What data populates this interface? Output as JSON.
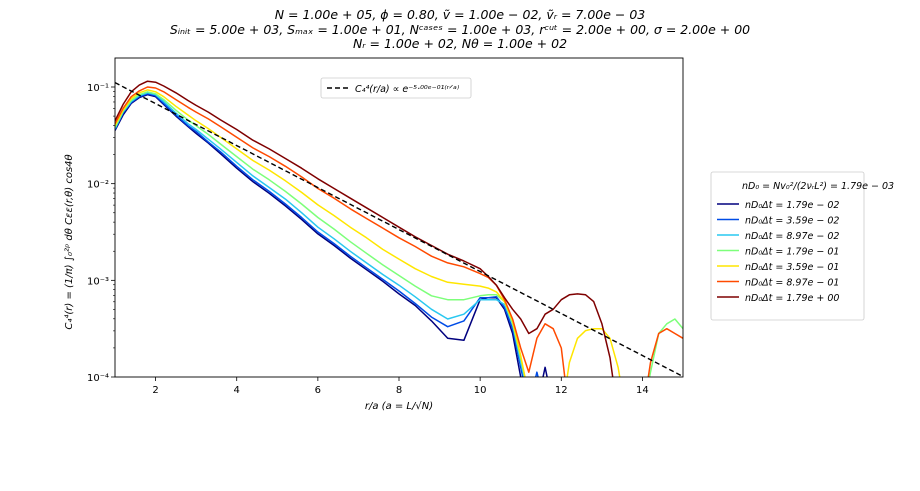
{
  "chart_data": {
    "type": "line",
    "title_lines": [
      "N = 1.00e + 05, ϕ = 0.80, ṽ = 1.00e − 02, ṽᵣ = 7.00e − 03",
      "Sᵢₙᵢₜ = 5.00e + 03, Sₘₐₓ = 1.00e + 01, Nᶜᵃˢᵉˢ = 1.00e + 03, rᶜᵘᵗ = 2.00e + 00, σ = 2.00e + 00",
      "Nᵣ = 1.00e + 02, Nθ = 1.00e + 02"
    ],
    "xlabel": "r/a (a = L/√N)",
    "ylabel": "C₄⁴(r) = (1/π) ∫₀²ᵖ dθ Cεε(r,θ) cos4θ",
    "xlim": [
      1,
      15
    ],
    "ylim_log10": [
      -4,
      -0.7
    ],
    "yscale": "log",
    "x_ticks": [
      2,
      4,
      6,
      8,
      10,
      12,
      14
    ],
    "x_tick_labels": [
      "2",
      "4",
      "6",
      "8",
      "10",
      "12",
      "14"
    ],
    "y_ticks_log10": [
      -4,
      -3,
      -2,
      -1
    ],
    "y_tick_labels": [
      "10⁻⁴",
      "10⁻³",
      "10⁻²",
      "10⁻¹"
    ],
    "fit_line": {
      "label": "C₄⁴(r/a) ∝ e⁻⁵·⁰⁰ᵉ⁻⁰¹⁽ʳᐟᵃ⁾",
      "amplitude": 0.183,
      "rate": 0.5,
      "color": "#000000"
    },
    "legend_title": "nD₀ = Nv₀²/(2νᵣL²) = 1.79e − 03",
    "x": [
      1,
      1.2,
      1.4,
      1.6,
      1.8,
      2,
      2.2,
      2.5,
      2.8,
      3,
      3.3,
      3.6,
      4,
      4.4,
      4.8,
      5.2,
      5.6,
      6,
      6.4,
      6.8,
      7.2,
      7.6,
      8,
      8.4,
      8.8,
      9.2,
      9.6,
      10,
      10.2,
      10.4,
      10.6,
      10.8,
      11,
      11.2,
      11.4,
      11.6,
      11.8,
      12,
      12.2,
      12.4,
      12.6,
      12.8,
      13,
      13.2,
      13.4,
      13.6,
      13.8,
      14,
      14.2,
      14.4,
      14.6,
      14.8,
      15
    ],
    "series": [
      {
        "name": "nD₀Δt = 1.79e − 02",
        "color": "#00007f",
        "log10": [
          -1.45,
          -1.29,
          -1.17,
          -1.11,
          -1.08,
          -1.1,
          -1.18,
          -1.3,
          -1.41,
          -1.48,
          -1.58,
          -1.69,
          -1.84,
          -1.98,
          -2.1,
          -2.23,
          -2.37,
          -2.52,
          -2.64,
          -2.77,
          -2.89,
          -3.01,
          -3.14,
          -3.26,
          -3.42,
          -3.6,
          -3.62,
          -3.2,
          -3.18,
          -3.18,
          -3.3,
          -3.55,
          -4,
          -4.3,
          -4.3,
          -3.9,
          -4.3,
          -4.4,
          -4.4,
          -4.4,
          -4.4,
          -4.4,
          -4.4,
          -4.4,
          -4.4,
          -4.4,
          -4.4,
          -4.4,
          -4.4,
          -4.4,
          -4.4,
          -4.4,
          -4.4
        ]
      },
      {
        "name": "nD₀Δt = 3.59e − 02",
        "color": "#004ce6",
        "log10": [
          -1.44,
          -1.27,
          -1.16,
          -1.1,
          -1.07,
          -1.09,
          -1.17,
          -1.29,
          -1.4,
          -1.46,
          -1.57,
          -1.67,
          -1.82,
          -1.96,
          -2.08,
          -2.21,
          -2.35,
          -2.5,
          -2.62,
          -2.75,
          -2.87,
          -2.99,
          -3.11,
          -3.24,
          -3.38,
          -3.48,
          -3.42,
          -3.18,
          -3.18,
          -3.17,
          -3.28,
          -3.5,
          -3.9,
          -4.3,
          -3.95,
          -4.3,
          -4.4,
          -4.4,
          -4.4,
          -4.4,
          -4.4,
          -4.4,
          -4.4,
          -4.4,
          -4.4,
          -4.4,
          -4.4,
          -4.4,
          -4.4,
          -4.4,
          -4.4,
          -4.4,
          -4.4
        ]
      },
      {
        "name": "nD₀Δt = 8.97e − 02",
        "color": "#29c8f0",
        "log10": [
          -1.43,
          -1.26,
          -1.15,
          -1.09,
          -1.06,
          -1.08,
          -1.15,
          -1.27,
          -1.38,
          -1.44,
          -1.54,
          -1.64,
          -1.78,
          -1.92,
          -2.04,
          -2.16,
          -2.3,
          -2.45,
          -2.57,
          -2.7,
          -2.82,
          -2.94,
          -3.05,
          -3.17,
          -3.3,
          -3.4,
          -3.35,
          -3.2,
          -3.2,
          -3.2,
          -3.25,
          -3.45,
          -3.85,
          -4.2,
          -4.3,
          -4.4,
          -4.4,
          -4.4,
          -4.4,
          -4.4,
          -4.4,
          -4.4,
          -4.4,
          -4.4,
          -4.4,
          -4.4,
          -4.4,
          -4.4,
          -4.4,
          -4.4,
          -4.4,
          -4.4,
          -4.4
        ]
      },
      {
        "name": "nD₀Δt = 1.79e − 01",
        "color": "#7dff7a",
        "log10": [
          -1.42,
          -1.25,
          -1.14,
          -1.08,
          -1.05,
          -1.07,
          -1.13,
          -1.24,
          -1.34,
          -1.4,
          -1.49,
          -1.59,
          -1.72,
          -1.85,
          -1.96,
          -2.08,
          -2.21,
          -2.35,
          -2.47,
          -2.6,
          -2.72,
          -2.84,
          -2.95,
          -3.06,
          -3.16,
          -3.2,
          -3.2,
          -3.16,
          -3.15,
          -3.15,
          -3.22,
          -3.45,
          -3.8,
          -4.2,
          -4.4,
          -4.4,
          -4.4,
          -4.4,
          -4.4,
          -4.4,
          -4.4,
          -4.4,
          -4.4,
          -4.4,
          -4.4,
          -4.4,
          -4.4,
          -4.4,
          -3.95,
          -3.55,
          -3.45,
          -3.4,
          -3.5
        ]
      },
      {
        "name": "nD₀Δt = 3.59e − 01",
        "color": "#ffe600",
        "log10": [
          -1.4,
          -1.24,
          -1.12,
          -1.06,
          -1.03,
          -1.05,
          -1.1,
          -1.2,
          -1.29,
          -1.35,
          -1.43,
          -1.52,
          -1.64,
          -1.76,
          -1.86,
          -1.97,
          -2.09,
          -2.22,
          -2.33,
          -2.45,
          -2.56,
          -2.68,
          -2.78,
          -2.88,
          -2.96,
          -3.02,
          -3.04,
          -3.06,
          -3.08,
          -3.12,
          -3.22,
          -3.42,
          -3.78,
          -4.2,
          -4.4,
          -4.4,
          -4.4,
          -4.4,
          -3.85,
          -3.6,
          -3.52,
          -3.5,
          -3.5,
          -3.6,
          -3.9,
          -4.4,
          -4.4,
          -4.4,
          -4.4,
          -4.4,
          -4.4,
          -4.4,
          -4.4
        ]
      },
      {
        "name": "nD₀Δt = 8.97e − 01",
        "color": "#ff4a00",
        "log10": [
          -1.38,
          -1.22,
          -1.1,
          -1.04,
          -1.0,
          -1.01,
          -1.05,
          -1.13,
          -1.21,
          -1.26,
          -1.33,
          -1.41,
          -1.52,
          -1.63,
          -1.72,
          -1.82,
          -1.93,
          -2.05,
          -2.15,
          -2.26,
          -2.36,
          -2.46,
          -2.56,
          -2.65,
          -2.75,
          -2.82,
          -2.86,
          -2.93,
          -2.97,
          -3.05,
          -3.2,
          -3.4,
          -3.7,
          -3.95,
          -3.6,
          -3.45,
          -3.5,
          -3.7,
          -4.4,
          -4.4,
          -4.4,
          -4.4,
          -4.4,
          -4.4,
          -4.4,
          -4.4,
          -4.4,
          -4.4,
          -3.85,
          -3.55,
          -3.5,
          -3.55,
          -3.6
        ]
      },
      {
        "name": "nD₀Δt = 1.79e + 00",
        "color": "#7f0000",
        "log10": [
          -1.35,
          -1.18,
          -1.05,
          -0.98,
          -0.94,
          -0.95,
          -0.99,
          -1.06,
          -1.14,
          -1.19,
          -1.26,
          -1.34,
          -1.44,
          -1.55,
          -1.64,
          -1.74,
          -1.84,
          -1.95,
          -2.05,
          -2.15,
          -2.25,
          -2.35,
          -2.45,
          -2.55,
          -2.64,
          -2.73,
          -2.8,
          -2.88,
          -2.96,
          -3.05,
          -3.18,
          -3.3,
          -3.4,
          -3.55,
          -3.5,
          -3.35,
          -3.3,
          -3.2,
          -3.15,
          -3.14,
          -3.15,
          -3.22,
          -3.45,
          -3.8,
          -4.4,
          -4.4,
          -4.4,
          -4.4,
          -4.4,
          -4.4,
          -4.4,
          -4.4,
          -4.4
        ]
      }
    ]
  }
}
